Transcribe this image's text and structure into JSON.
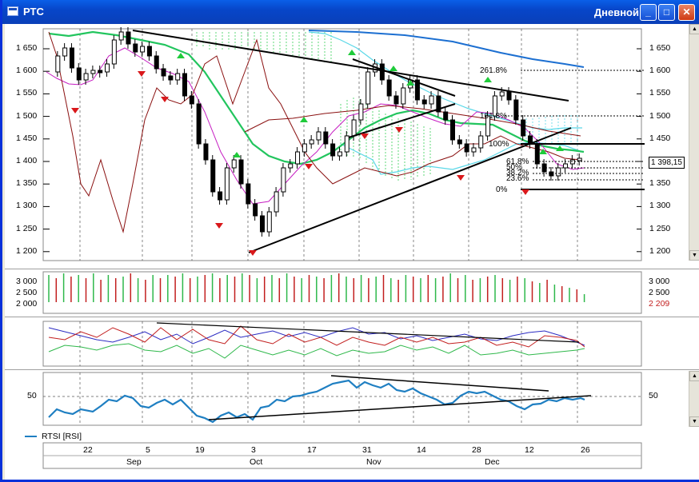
{
  "window": {
    "title": "РТС",
    "period": "Дневной",
    "minimize_glyph": "_",
    "maximize_glyph": "□",
    "close_glyph": "✕"
  },
  "price_panel": {
    "y_ticks": [
      "1 650",
      "1 600",
      "1 550",
      "1 500",
      "1 450",
      "1 400",
      "1 350",
      "1 300",
      "1 250",
      "1 200"
    ],
    "current_price": "1 398,15",
    "fib_labels": [
      "261.8%",
      "161.8%",
      "100%",
      "61.8%",
      "50%",
      "38.2%",
      "23.6%",
      "0%"
    ]
  },
  "volume_panel": {
    "y_ticks": [
      "3 000",
      "2 500",
      "2 000"
    ],
    "current_value": "2 209"
  },
  "rsi_panel": {
    "y_ticks": [
      "50"
    ],
    "legend": "RTSI [RSI]"
  },
  "x_axis": {
    "day_labels": [
      "22",
      "5",
      "19",
      "3",
      "17",
      "31",
      "14",
      "28",
      "12",
      "26"
    ],
    "month_labels": [
      "Sep",
      "Oct",
      "Nov",
      "Dec"
    ]
  },
  "colors": {
    "title_bar": "#0A5FE8",
    "up_signal": "#1FCB3A",
    "down_signal": "#D9181B",
    "rsi_line": "#1F7FC2",
    "ma_green": "#22C55E",
    "ma_blue": "#1C6FD1"
  }
}
